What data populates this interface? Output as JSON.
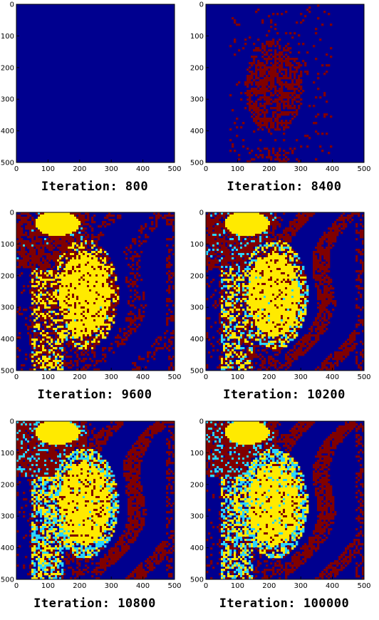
{
  "colors": {
    "background_class": "#00008f",
    "class_dark_red": "#800000",
    "class_yellow": "#ffea00",
    "class_cyan": "#2ad4ff"
  },
  "axis_ticks": {
    "x": [
      "0",
      "100",
      "200",
      "300",
      "400",
      "500"
    ],
    "y": [
      "0",
      "100",
      "200",
      "300",
      "400",
      "500"
    ],
    "range": [
      0,
      500
    ]
  },
  "panels": [
    {
      "caption": "Iteration: 800"
    },
    {
      "caption": "Iteration: 8400"
    },
    {
      "caption": "Iteration: 9600"
    },
    {
      "caption": "Iteration: 10200"
    },
    {
      "caption": "Iteration: 10800"
    },
    {
      "caption": "Iteration: 100000"
    }
  ]
}
